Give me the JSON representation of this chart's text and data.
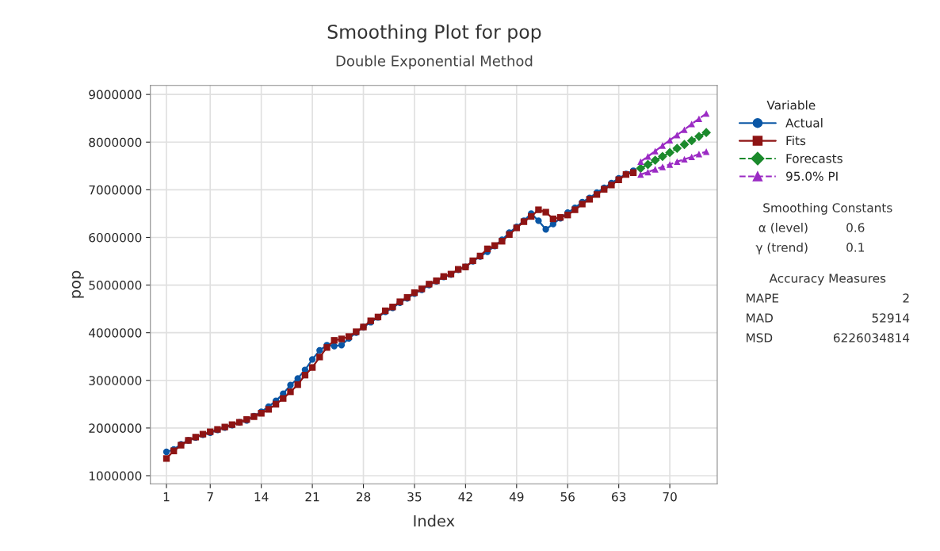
{
  "chart_data": {
    "type": "line",
    "title": "Smoothing Plot for pop",
    "subtitle": "Double Exponential Method",
    "xlabel": "Index",
    "ylabel": "pop",
    "legend_title": "Variable",
    "legend": "right",
    "grid": true,
    "xlim": [
      -1.2,
      76.5
    ],
    "xticks": [
      1,
      7,
      14,
      21,
      28,
      35,
      42,
      49,
      56,
      63,
      70
    ],
    "ylim": [
      830000,
      9190000
    ],
    "yticks": [
      1000000,
      2000000,
      3000000,
      4000000,
      5000000,
      6000000,
      7000000,
      8000000,
      9000000
    ],
    "series": [
      {
        "name": "Actual",
        "color": "#0a56a5",
        "marker": "circle",
        "line_style": "solid",
        "x": [
          1,
          2,
          3,
          4,
          5,
          6,
          7,
          8,
          9,
          10,
          11,
          12,
          13,
          14,
          15,
          16,
          17,
          18,
          19,
          20,
          21,
          22,
          23,
          24,
          25,
          26,
          27,
          28,
          29,
          30,
          31,
          32,
          33,
          34,
          35,
          36,
          37,
          38,
          39,
          40,
          41,
          42,
          43,
          44,
          45,
          46,
          47,
          48,
          49,
          50,
          51,
          52,
          53,
          54,
          55,
          56,
          57,
          58,
          59,
          60,
          61,
          62,
          63,
          64,
          65
        ],
        "values": [
          1500000,
          1550000,
          1660000,
          1740000,
          1800000,
          1860000,
          1900000,
          1960000,
          2010000,
          2060000,
          2120000,
          2160000,
          2250000,
          2340000,
          2450000,
          2570000,
          2720000,
          2900000,
          3040000,
          3220000,
          3440000,
          3630000,
          3740000,
          3720000,
          3740000,
          3880000,
          4000000,
          4120000,
          4220000,
          4320000,
          4440000,
          4520000,
          4630000,
          4720000,
          4820000,
          4900000,
          5000000,
          5080000,
          5170000,
          5220000,
          5320000,
          5380000,
          5500000,
          5600000,
          5700000,
          5820000,
          5950000,
          6100000,
          6220000,
          6350000,
          6500000,
          6350000,
          6170000,
          6280000,
          6400000,
          6520000,
          6620000,
          6740000,
          6830000,
          6940000,
          7040000,
          7140000,
          7240000,
          7330000,
          7400000
        ]
      },
      {
        "name": "Fits",
        "color": "#8e1414",
        "marker": "square",
        "line_style": "solid",
        "x": [
          1,
          2,
          3,
          4,
          5,
          6,
          7,
          8,
          9,
          10,
          11,
          12,
          13,
          14,
          15,
          16,
          17,
          18,
          19,
          20,
          21,
          22,
          23,
          24,
          25,
          26,
          27,
          28,
          29,
          30,
          31,
          32,
          33,
          34,
          35,
          36,
          37,
          38,
          39,
          40,
          41,
          42,
          43,
          44,
          45,
          46,
          47,
          48,
          49,
          50,
          51,
          52,
          53,
          54,
          55,
          56,
          57,
          58,
          59,
          60,
          61,
          62,
          63,
          64,
          65
        ],
        "values": [
          1360000,
          1520000,
          1640000,
          1740000,
          1810000,
          1870000,
          1920000,
          1970000,
          2020000,
          2070000,
          2120000,
          2180000,
          2240000,
          2310000,
          2390000,
          2500000,
          2620000,
          2760000,
          2910000,
          3110000,
          3270000,
          3490000,
          3690000,
          3840000,
          3870000,
          3920000,
          4020000,
          4120000,
          4250000,
          4330000,
          4460000,
          4540000,
          4650000,
          4740000,
          4840000,
          4920000,
          5020000,
          5090000,
          5180000,
          5230000,
          5330000,
          5380000,
          5510000,
          5610000,
          5760000,
          5830000,
          5920000,
          6060000,
          6200000,
          6330000,
          6440000,
          6580000,
          6530000,
          6390000,
          6420000,
          6470000,
          6580000,
          6700000,
          6800000,
          6900000,
          7010000,
          7100000,
          7210000,
          7320000,
          7360000
        ]
      },
      {
        "name": "Forecasts",
        "color": "#1b8a2c",
        "marker": "diamond",
        "line_style": "dashed",
        "x": [
          66,
          67,
          68,
          69,
          70,
          71,
          72,
          73,
          74,
          75
        ],
        "values": [
          7450000,
          7530000,
          7620000,
          7700000,
          7780000,
          7870000,
          7950000,
          8030000,
          8120000,
          8200000
        ]
      },
      {
        "name": "95.0% PI",
        "color": "#9b2bc4",
        "marker": "triangle",
        "line_style": "dashed",
        "x": [
          66,
          67,
          68,
          69,
          70,
          71,
          72,
          73,
          74,
          75
        ],
        "values": [
          7590000,
          7700000,
          7810000,
          7930000,
          8040000,
          8150000,
          8260000,
          8380000,
          8490000,
          8600000
        ]
      },
      {
        "color": "#9b2bc4",
        "marker": "triangle",
        "line_style": "dashed",
        "x": [
          66,
          67,
          68,
          69,
          70,
          71,
          72,
          73,
          74,
          75
        ],
        "values": [
          7320000,
          7370000,
          7430000,
          7480000,
          7530000,
          7590000,
          7640000,
          7690000,
          7750000,
          7800000
        ]
      }
    ],
    "annotations": [
      "Smoothing Constants",
      "α (level)\t0.6",
      "γ (trend)\t0.1",
      "Accuracy Measures",
      "MAPE\t2",
      "MAD\t52914",
      "MSD\t6226034814"
    ]
  }
}
